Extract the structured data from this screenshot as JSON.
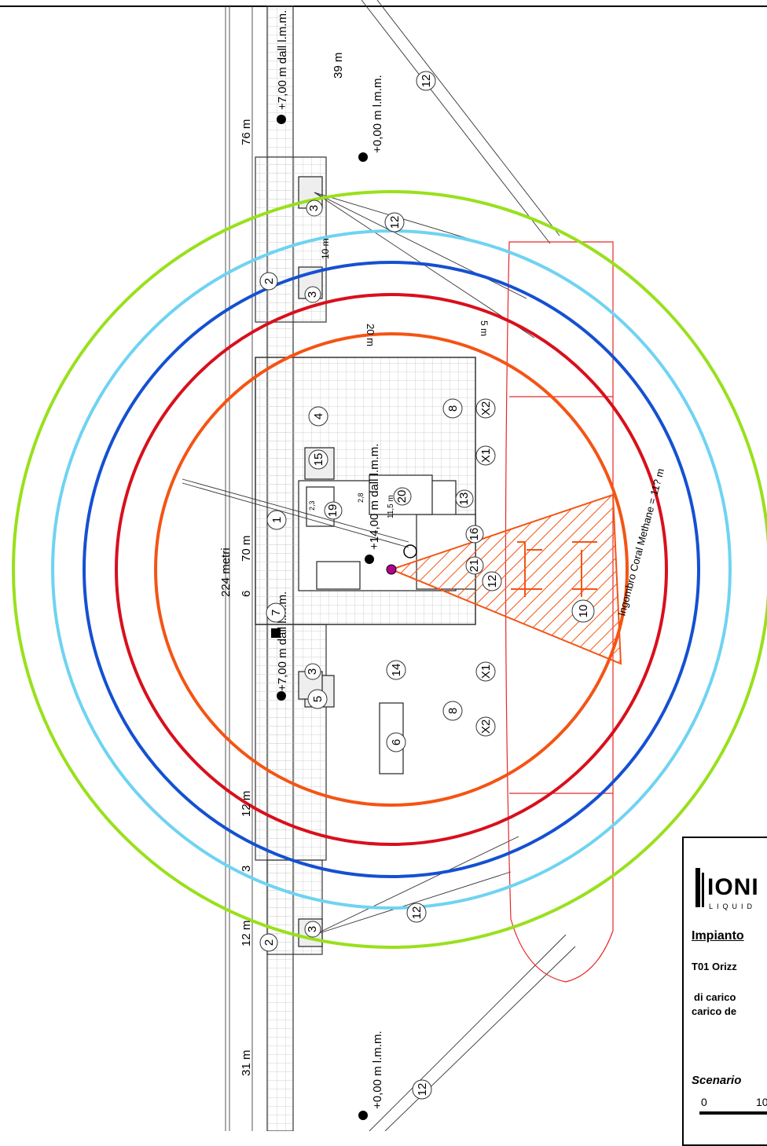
{
  "plan": {
    "elevations": {
      "zero_top": "+0,00 m l.m.m.",
      "zero_bottom": "+0,00 m l.m.m.",
      "seven_top": "+7,00 m dall l.m.m.",
      "seven_bottom": "+7,00 m dall l.m.m.",
      "fourteen": "+14,00 m dall l.m.m."
    },
    "dimensions": {
      "d39": "39 m",
      "d76": "76 m",
      "d224": "224 metri",
      "d70": "70 m",
      "d12a": "12 m",
      "d3": "3",
      "d12b": "12 m",
      "d31": "31 m",
      "d6": "6",
      "d20": "20 m",
      "d5": "5 m",
      "d10": "10 m",
      "d115": "11,5 m",
      "d28": "2,8",
      "d23": "2,3"
    },
    "ship_label": "Ingombro Coral Methane = 11? m",
    "markers": {
      "m1": "1",
      "m2a": "2",
      "m2b": "2",
      "m3a": "3",
      "m3b": "3",
      "m3c": "3",
      "m3d": "3",
      "m4": "4",
      "m5": "5",
      "m6": "6",
      "m7": "7",
      "m8a": "8",
      "m8b": "8",
      "m10": "10",
      "m12a": "12",
      "m12b": "12",
      "m12c": "12",
      "m12d": "12",
      "m12e": "12",
      "m13": "13",
      "m14": "14",
      "m15": "15",
      "m16": "16",
      "m19": "19",
      "m20": "20",
      "m21": "21",
      "x1a": "X1",
      "x1b": "X1",
      "x2a": "X2",
      "x2b": "X2"
    },
    "colors": {
      "green": "#99e01c",
      "light_blue": "#6fd3f2",
      "blue": "#1450d2",
      "red": "#d8101c",
      "orange": "#f45414",
      "vessel": "#e62828",
      "source": "#b4008c"
    }
  },
  "legend": {
    "logo_text": "IONI",
    "logo_sub": "LIQUID",
    "title": "Impianto",
    "line1": "T01 Orizz",
    "line2": "di carico",
    "line3": "carico de",
    "scenario": "Scenario",
    "scale0": "0",
    "scale10": "10"
  }
}
